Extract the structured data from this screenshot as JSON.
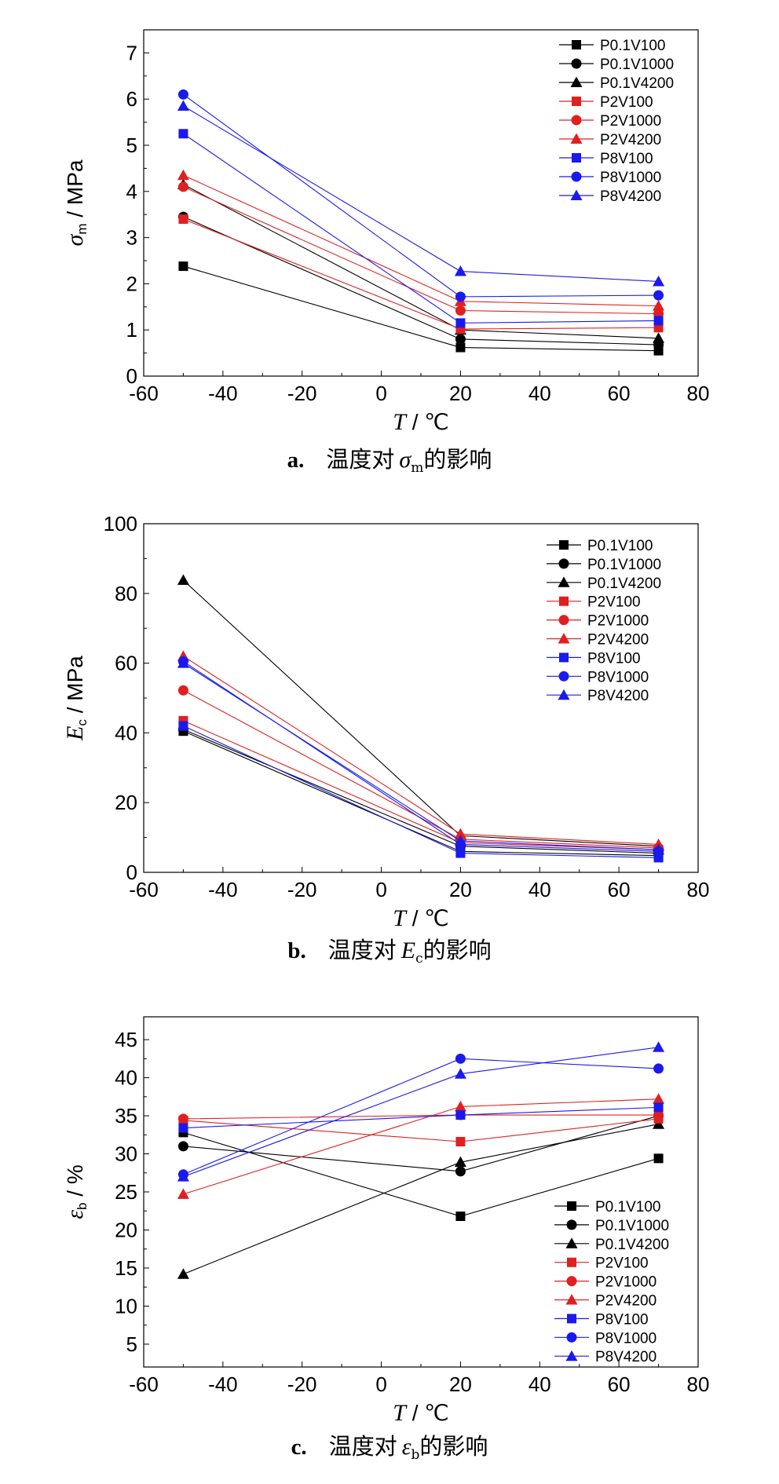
{
  "colors": {
    "P0.1": "#000000",
    "P2": "#e02020",
    "P8": "#1a1aee"
  },
  "series_styles": [
    {
      "name": "P0.1V100",
      "color": "#000000",
      "marker": "square"
    },
    {
      "name": "P0.1V1000",
      "color": "#000000",
      "marker": "circle"
    },
    {
      "name": "P0.1V4200",
      "color": "#000000",
      "marker": "triangle"
    },
    {
      "name": "P2V100",
      "color": "#e02020",
      "marker": "square"
    },
    {
      "name": "P2V1000",
      "color": "#e02020",
      "marker": "circle"
    },
    {
      "name": "P2V4200",
      "color": "#e02020",
      "marker": "triangle"
    },
    {
      "name": "P8V100",
      "color": "#1a1aee",
      "marker": "square"
    },
    {
      "name": "P8V1000",
      "color": "#1a1aee",
      "marker": "circle"
    },
    {
      "name": "P8V4200",
      "color": "#1a1aee",
      "marker": "triangle"
    }
  ],
  "chart_data": [
    {
      "id": "a",
      "type": "line",
      "caption": {
        "prefix": "a.",
        "text": "温度对",
        "symbol": "σ",
        "subscript": "m",
        "suffix": "的影响"
      },
      "xlabel": {
        "symbol": "T",
        "unit": " / ℃"
      },
      "ylabel": {
        "symbol": "σ",
        "subscript": "m",
        "unit": " / MPa"
      },
      "xlim": [
        -60,
        80
      ],
      "ylim": [
        0,
        7.5
      ],
      "xticks": [
        -60,
        -40,
        -20,
        0,
        20,
        40,
        60,
        80
      ],
      "yticks": [
        0,
        1,
        2,
        3,
        4,
        5,
        6,
        7
      ],
      "legend_position": "top-right",
      "x": [
        -50,
        20,
        70
      ],
      "series": [
        {
          "name": "P0.1V100",
          "values": [
            2.38,
            0.62,
            0.55
          ]
        },
        {
          "name": "P0.1V1000",
          "values": [
            3.45,
            0.8,
            0.68
          ]
        },
        {
          "name": "P0.1V4200",
          "values": [
            4.15,
            1.0,
            0.82
          ]
        },
        {
          "name": "P2V100",
          "values": [
            3.4,
            1.02,
            1.05
          ]
        },
        {
          "name": "P2V1000",
          "values": [
            4.1,
            1.42,
            1.35
          ]
        },
        {
          "name": "P2V4200",
          "values": [
            4.35,
            1.62,
            1.52
          ]
        },
        {
          "name": "P8V100",
          "values": [
            5.25,
            1.15,
            1.2
          ]
        },
        {
          "name": "P8V1000",
          "values": [
            6.1,
            1.72,
            1.75
          ]
        },
        {
          "name": "P8V4200",
          "values": [
            5.85,
            2.27,
            2.05
          ]
        }
      ]
    },
    {
      "id": "b",
      "type": "line",
      "caption": {
        "prefix": "b.",
        "text": "温度对",
        "symbol": "E",
        "subscript": "c",
        "suffix": "的影响"
      },
      "xlabel": {
        "symbol": "T",
        "unit": " / ℃"
      },
      "ylabel": {
        "symbol": "E",
        "subscript": "c",
        "unit": " / MPa"
      },
      "xlim": [
        -60,
        80
      ],
      "ylim": [
        0,
        100
      ],
      "xticks": [
        -60,
        -40,
        -20,
        0,
        20,
        40,
        60,
        80
      ],
      "yticks": [
        0,
        20,
        40,
        60,
        80,
        100
      ],
      "legend_position": "top-right",
      "x": [
        -50,
        20,
        70
      ],
      "series": [
        {
          "name": "P0.1V100",
          "values": [
            40.5,
            6.0,
            4.8
          ]
        },
        {
          "name": "P0.1V1000",
          "values": [
            41.0,
            7.5,
            5.5
          ]
        },
        {
          "name": "P0.1V4200",
          "values": [
            83.8,
            10.5,
            7.5
          ]
        },
        {
          "name": "P2V100",
          "values": [
            43.5,
            8.5,
            6.5
          ]
        },
        {
          "name": "P2V1000",
          "values": [
            52.2,
            9.5,
            7.0
          ]
        },
        {
          "name": "P2V4200",
          "values": [
            62.0,
            11.0,
            8.0
          ]
        },
        {
          "name": "P8V100",
          "values": [
            42.0,
            5.5,
            4.2
          ]
        },
        {
          "name": "P8V1000",
          "values": [
            60.5,
            8.0,
            6.0
          ]
        },
        {
          "name": "P8V4200",
          "values": [
            60.0,
            9.0,
            6.5
          ]
        }
      ]
    },
    {
      "id": "c",
      "type": "line",
      "caption": {
        "prefix": "c.",
        "text": "温度对",
        "symbol": "ε",
        "subscript": "b",
        "suffix": "的影响"
      },
      "xlabel": {
        "symbol": "T",
        "unit": " / ℃"
      },
      "ylabel": {
        "symbol": "ε",
        "subscript": "b",
        "unit": " / %"
      },
      "xlim": [
        -60,
        80
      ],
      "ylim": [
        2,
        48
      ],
      "xticks": [
        -60,
        -40,
        -20,
        0,
        20,
        40,
        60,
        80
      ],
      "yticks": [
        5,
        10,
        15,
        20,
        25,
        30,
        35,
        40,
        45
      ],
      "legend_position": "bottom-right",
      "x": [
        -50,
        20,
        70
      ],
      "series": [
        {
          "name": "P0.1V100",
          "values": [
            32.8,
            21.8,
            29.4
          ]
        },
        {
          "name": "P0.1V1000",
          "values": [
            31.0,
            27.7,
            35.0
          ]
        },
        {
          "name": "P0.1V4200",
          "values": [
            14.2,
            28.9,
            33.9
          ]
        },
        {
          "name": "P2V100",
          "values": [
            34.4,
            31.6,
            34.6
          ]
        },
        {
          "name": "P2V1000",
          "values": [
            34.6,
            35.1,
            35.1
          ]
        },
        {
          "name": "P2V4200",
          "values": [
            24.7,
            36.2,
            37.2
          ]
        },
        {
          "name": "P8V100",
          "values": [
            33.4,
            35.1,
            36.1
          ]
        },
        {
          "name": "P8V1000",
          "values": [
            27.3,
            42.5,
            41.2
          ]
        },
        {
          "name": "P8V4200",
          "values": [
            27.0,
            40.5,
            44.0
          ]
        }
      ]
    }
  ]
}
